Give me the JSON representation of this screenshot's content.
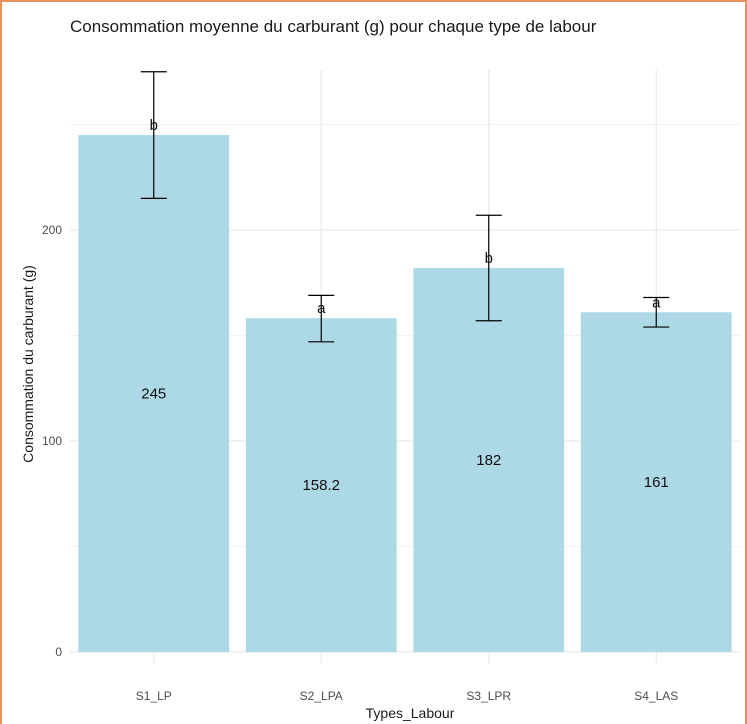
{
  "chart_data": {
    "type": "bar",
    "title": "Consommation moyenne du carburant (g) pour chaque type de labour",
    "xlabel": "Types_Labour",
    "ylabel": "Consommation du carburant (g)",
    "categories": [
      "S1_LP",
      "S2_LPA",
      "S3_LPR",
      "S4_LAS"
    ],
    "values": [
      245,
      158.2,
      182,
      161
    ],
    "value_labels": [
      "245",
      "158.2",
      "182",
      "161"
    ],
    "error_low": [
      215,
      147,
      157,
      154
    ],
    "error_high": [
      275,
      169,
      207,
      168
    ],
    "group_letters": [
      "b",
      "a",
      "b",
      "a"
    ],
    "ylim": [
      0,
      285
    ],
    "y_ticks": [
      0,
      100,
      200
    ],
    "grid": true,
    "colors": {
      "bar": "#add8e6",
      "grid_major": "#e6e6e6",
      "grid_minor": "#f2f2f2",
      "error": "#000000",
      "frame": "#e8915a"
    }
  }
}
